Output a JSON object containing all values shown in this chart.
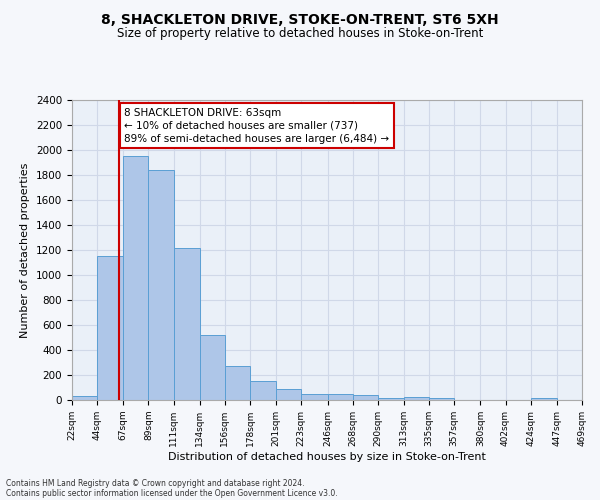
{
  "title": "8, SHACKLETON DRIVE, STOKE-ON-TRENT, ST6 5XH",
  "subtitle": "Size of property relative to detached houses in Stoke-on-Trent",
  "xlabel": "Distribution of detached houses by size in Stoke-on-Trent",
  "ylabel": "Number of detached properties",
  "footer_line1": "Contains HM Land Registry data © Crown copyright and database right 2024.",
  "footer_line2": "Contains public sector information licensed under the Open Government Licence v3.0.",
  "annotation_text": "8 SHACKLETON DRIVE: 63sqm\n← 10% of detached houses are smaller (737)\n89% of semi-detached houses are larger (6,484) →",
  "bar_color": "#aec6e8",
  "bar_edge_color": "#5a9fd4",
  "vline_color": "#cc0000",
  "vline_x": 63,
  "ylim": [
    0,
    2400
  ],
  "yticks": [
    0,
    200,
    400,
    600,
    800,
    1000,
    1200,
    1400,
    1600,
    1800,
    2000,
    2200,
    2400
  ],
  "bin_edges": [
    22,
    44,
    67,
    89,
    111,
    134,
    156,
    178,
    201,
    223,
    246,
    268,
    290,
    313,
    335,
    357,
    380,
    402,
    424,
    447,
    469
  ],
  "bin_heights": [
    30,
    1150,
    1950,
    1840,
    1220,
    520,
    270,
    155,
    85,
    50,
    45,
    40,
    20,
    25,
    15,
    0,
    0,
    0,
    20,
    0
  ],
  "grid_color": "#d0d8e8",
  "bg_color": "#eaf0f8",
  "fig_bg_color": "#f5f7fb",
  "annotation_box_color": "#ffffff",
  "annotation_box_edge": "#cc0000",
  "title_fontsize": 10,
  "subtitle_fontsize": 8.5,
  "ylabel_fontsize": 8,
  "xlabel_fontsize": 8,
  "ytick_fontsize": 7.5,
  "xtick_fontsize": 6.5,
  "footer_fontsize": 5.5
}
